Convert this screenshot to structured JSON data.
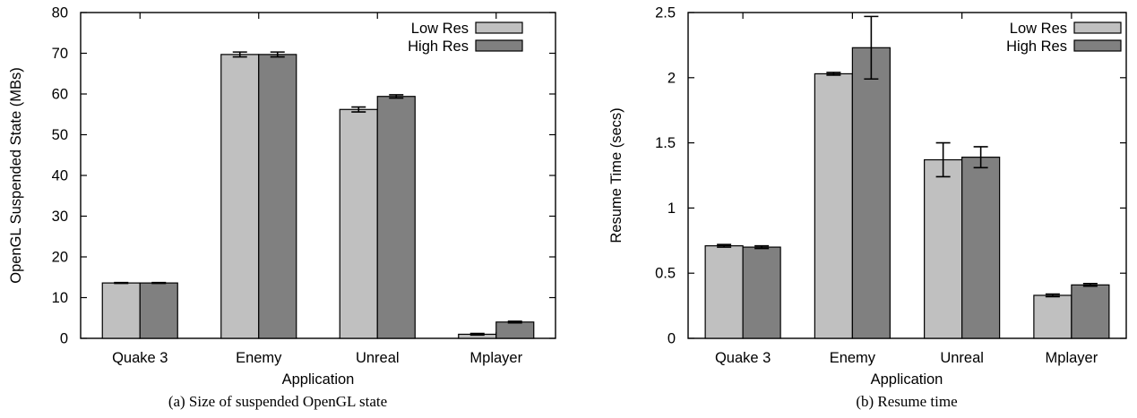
{
  "chart_data": [
    {
      "type": "bar",
      "caption": "(a) Size of suspended OpenGL state",
      "xlabel": "Application",
      "ylabel": "OpenGL Suspended State (MBs)",
      "categories": [
        "Quake 3",
        "Enemy",
        "Unreal",
        "Mplayer"
      ],
      "ylim": [
        0,
        80
      ],
      "yticks": [
        0,
        10,
        20,
        30,
        40,
        50,
        60,
        70,
        80
      ],
      "ytick_labels": [
        "0",
        "10",
        "20",
        "30",
        "40",
        "50",
        "60",
        "70",
        "80"
      ],
      "legend_position": "top-right",
      "series": [
        {
          "name": "Low Res",
          "color": "#c0c0c0",
          "values": [
            13.6,
            69.7,
            56.2,
            1.0
          ],
          "errors": [
            0.1,
            0.6,
            0.6,
            0.2
          ]
        },
        {
          "name": "High Res",
          "color": "#808080",
          "values": [
            13.6,
            69.7,
            59.4,
            4.0
          ],
          "errors": [
            0.1,
            0.6,
            0.4,
            0.2
          ]
        }
      ]
    },
    {
      "type": "bar",
      "caption": "(b) Resume time",
      "xlabel": "Application",
      "ylabel": "Resume Time (secs)",
      "categories": [
        "Quake 3",
        "Enemy",
        "Unreal",
        "Mplayer"
      ],
      "ylim": [
        0,
        2.5
      ],
      "yticks": [
        0,
        0.5,
        1,
        1.5,
        2,
        2.5
      ],
      "ytick_labels": [
        "0",
        "0.5",
        "1",
        "1.5",
        "2",
        "2.5"
      ],
      "legend_position": "top-right",
      "series": [
        {
          "name": "Low Res",
          "color": "#c0c0c0",
          "values": [
            0.71,
            2.03,
            1.37,
            0.33
          ],
          "errors": [
            0.01,
            0.01,
            0.13,
            0.01
          ]
        },
        {
          "name": "High Res",
          "color": "#808080",
          "values": [
            0.7,
            2.23,
            1.39,
            0.41
          ],
          "errors": [
            0.01,
            0.24,
            0.08,
            0.01
          ]
        }
      ]
    }
  ]
}
